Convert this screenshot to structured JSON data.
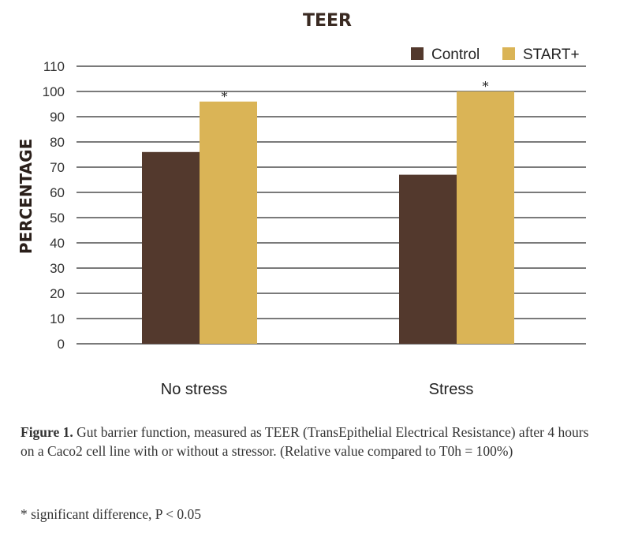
{
  "chart_data": {
    "type": "bar",
    "title": "TEER",
    "ylabel": "PERCENTAGE",
    "xlabel": "",
    "categories": [
      "No stress",
      "Stress"
    ],
    "series": [
      {
        "name": "Control",
        "color": "#53392d",
        "values": [
          76,
          67
        ]
      },
      {
        "name": "START+",
        "color": "#dab456",
        "values": [
          96,
          100
        ]
      }
    ],
    "ylim": [
      0,
      110
    ],
    "yticks": [
      0,
      10,
      20,
      30,
      40,
      50,
      60,
      70,
      80,
      90,
      100,
      110
    ],
    "grid": true,
    "legend_position": "top-right",
    "annotations": [
      {
        "category": "No stress",
        "series": "START+",
        "text": "*"
      },
      {
        "category": "Stress",
        "series": "START+",
        "text": "*"
      }
    ]
  },
  "caption": {
    "label": "Figure 1.",
    "text": " Gut barrier function, measured as TEER (TransEpithelial Electrical Resistance) after 4 hours on a Caco2 cell line with or without a stressor. (Relative value compared to T0h = 100%)"
  },
  "footnote": "* significant difference, P < 0.05"
}
